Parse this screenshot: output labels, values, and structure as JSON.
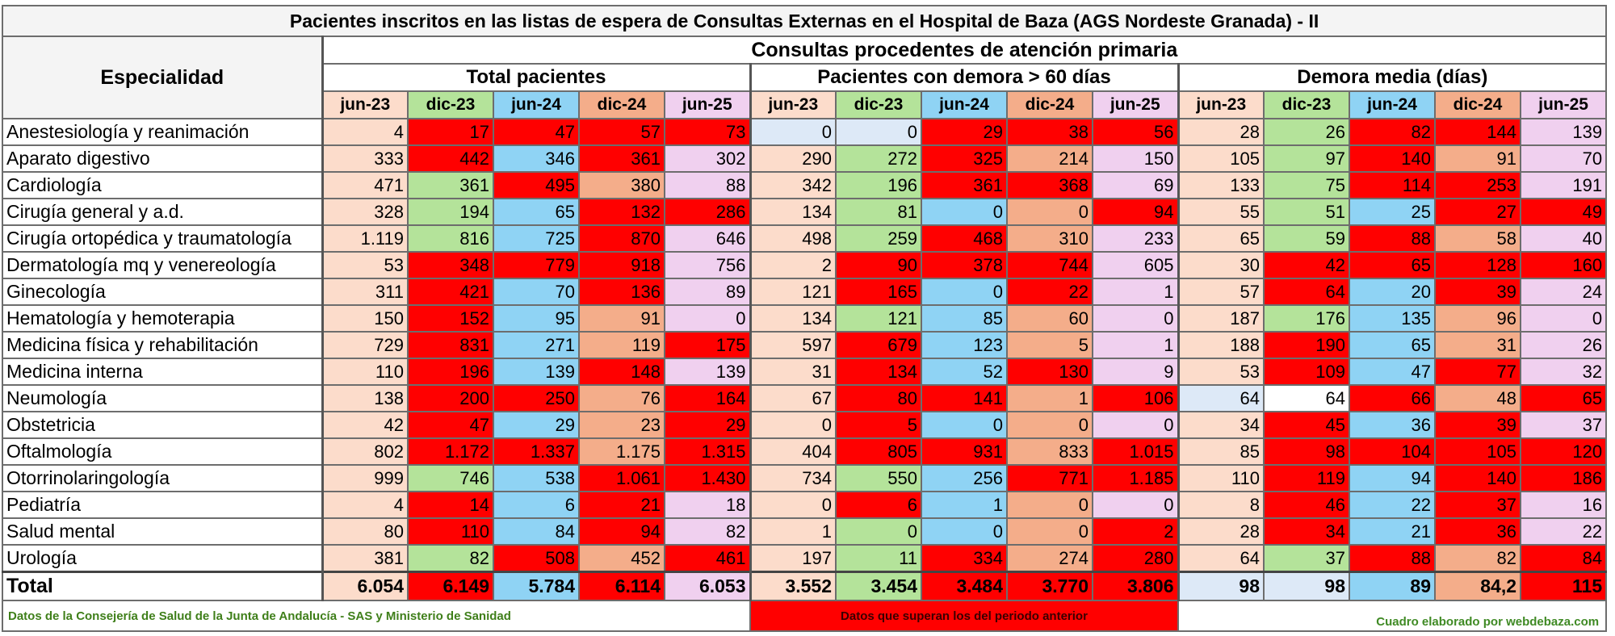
{
  "title": "Pacientes inscritos en las listas de espera de Consultas Externas en el Hospital de Baza  (AGS Nordeste Granada) - II",
  "specialty_header": "Especialidad",
  "group_header": "Consultas procedentes de atención primaria",
  "periods": [
    "jun-23",
    "dic-23",
    "jun-24",
    "dic-24",
    "jun-25"
  ],
  "period_colors": [
    "#fcdccb",
    "#b4e39a",
    "#8fd3f4",
    "#f4ad8a",
    "#f0d0ef"
  ],
  "colors": {
    "red": "#ff0000",
    "peach": "#fcdccb",
    "green": "#b4e39a",
    "blue": "#8fd3f4",
    "salmon": "#f4ad8a",
    "pink": "#f0d0ef",
    "lightblue": "#dde9f7",
    "white": "#ffffff"
  },
  "chart_data": {
    "type": "table",
    "title": "Pacientes inscritos en las listas de espera de Consultas Externas en el Hospital de Baza  (AGS Nordeste Granada) - II",
    "groups": [
      {
        "name": "Total pacientes"
      },
      {
        "name": "Pacientes con demora > 60 días"
      },
      {
        "name": "Demora media (días)"
      }
    ],
    "rows": [
      {
        "specialty": "Anestesiología y reanimación",
        "values": [
          "4",
          "17",
          "47",
          "57",
          "73",
          "0",
          "0",
          "29",
          "38",
          "56",
          "28",
          "26",
          "82",
          "144",
          "139"
        ],
        "colors": [
          "P",
          "R",
          "R",
          "R",
          "R",
          "LB",
          "LB",
          "R",
          "R",
          "R",
          "P",
          "G",
          "R",
          "R",
          "K"
        ]
      },
      {
        "specialty": "Aparato digestivo",
        "values": [
          "333",
          "442",
          "346",
          "361",
          "302",
          "290",
          "272",
          "325",
          "214",
          "150",
          "105",
          "97",
          "140",
          "91",
          "70"
        ],
        "colors": [
          "P",
          "R",
          "B",
          "R",
          "K",
          "P",
          "G",
          "R",
          "S",
          "K",
          "P",
          "G",
          "R",
          "S",
          "K"
        ]
      },
      {
        "specialty": "Cardiología",
        "values": [
          "471",
          "361",
          "495",
          "380",
          "88",
          "342",
          "196",
          "361",
          "368",
          "69",
          "133",
          "75",
          "114",
          "253",
          "191"
        ],
        "colors": [
          "P",
          "G",
          "R",
          "S",
          "K",
          "P",
          "G",
          "R",
          "R",
          "K",
          "P",
          "G",
          "R",
          "R",
          "K"
        ]
      },
      {
        "specialty": "Cirugía general y a.d.",
        "values": [
          "328",
          "194",
          "65",
          "132",
          "286",
          "134",
          "81",
          "0",
          "0",
          "94",
          "55",
          "51",
          "25",
          "27",
          "49"
        ],
        "colors": [
          "P",
          "G",
          "B",
          "R",
          "R",
          "P",
          "G",
          "B",
          "S",
          "R",
          "P",
          "G",
          "B",
          "R",
          "R"
        ]
      },
      {
        "specialty": "Cirugía ortopédica y traumatología",
        "values": [
          "1.119",
          "816",
          "725",
          "870",
          "646",
          "498",
          "259",
          "468",
          "310",
          "233",
          "65",
          "59",
          "88",
          "58",
          "40"
        ],
        "colors": [
          "P",
          "G",
          "B",
          "R",
          "K",
          "P",
          "G",
          "R",
          "S",
          "K",
          "P",
          "G",
          "R",
          "S",
          "K"
        ]
      },
      {
        "specialty": "Dermatología mq y venereología",
        "values": [
          "53",
          "348",
          "779",
          "918",
          "756",
          "2",
          "90",
          "378",
          "744",
          "605",
          "30",
          "42",
          "65",
          "128",
          "160"
        ],
        "colors": [
          "P",
          "R",
          "R",
          "R",
          "K",
          "P",
          "R",
          "R",
          "R",
          "K",
          "P",
          "R",
          "R",
          "R",
          "R"
        ]
      },
      {
        "specialty": "Ginecología",
        "values": [
          "311",
          "421",
          "70",
          "136",
          "89",
          "121",
          "165",
          "0",
          "22",
          "1",
          "57",
          "64",
          "20",
          "39",
          "24"
        ],
        "colors": [
          "P",
          "R",
          "B",
          "R",
          "K",
          "P",
          "R",
          "B",
          "R",
          "K",
          "P",
          "R",
          "B",
          "R",
          "K"
        ]
      },
      {
        "specialty": "Hematología y hemoterapia",
        "values": [
          "150",
          "152",
          "95",
          "91",
          "0",
          "134",
          "121",
          "85",
          "60",
          "0",
          "187",
          "176",
          "135",
          "96",
          "0"
        ],
        "colors": [
          "P",
          "R",
          "B",
          "S",
          "K",
          "P",
          "G",
          "B",
          "S",
          "K",
          "P",
          "G",
          "B",
          "S",
          "K"
        ]
      },
      {
        "specialty": "Medicina física y rehabilitación",
        "values": [
          "729",
          "831",
          "271",
          "119",
          "175",
          "597",
          "679",
          "123",
          "5",
          "1",
          "188",
          "190",
          "65",
          "31",
          "26"
        ],
        "colors": [
          "P",
          "R",
          "B",
          "S",
          "R",
          "P",
          "R",
          "B",
          "S",
          "K",
          "P",
          "R",
          "B",
          "S",
          "K"
        ]
      },
      {
        "specialty": "Medicina interna",
        "values": [
          "110",
          "196",
          "139",
          "148",
          "139",
          "31",
          "134",
          "52",
          "130",
          "9",
          "53",
          "109",
          "47",
          "77",
          "32"
        ],
        "colors": [
          "P",
          "R",
          "B",
          "R",
          "K",
          "P",
          "R",
          "B",
          "R",
          "K",
          "P",
          "R",
          "B",
          "R",
          "K"
        ]
      },
      {
        "specialty": "Neumología",
        "values": [
          "138",
          "200",
          "250",
          "76",
          "164",
          "67",
          "80",
          "141",
          "1",
          "106",
          "64",
          "64",
          "66",
          "48",
          "65"
        ],
        "colors": [
          "P",
          "R",
          "R",
          "S",
          "R",
          "P",
          "R",
          "R",
          "S",
          "R",
          "LB",
          "W",
          "R",
          "S",
          "R"
        ]
      },
      {
        "specialty": "Obstetricia",
        "values": [
          "42",
          "47",
          "29",
          "23",
          "29",
          "0",
          "5",
          "0",
          "0",
          "0",
          "34",
          "45",
          "36",
          "39",
          "37"
        ],
        "colors": [
          "P",
          "R",
          "B",
          "S",
          "R",
          "P",
          "R",
          "B",
          "S",
          "K",
          "P",
          "R",
          "B",
          "R",
          "K"
        ]
      },
      {
        "specialty": "Oftalmología",
        "values": [
          "802",
          "1.172",
          "1.337",
          "1.175",
          "1.315",
          "404",
          "805",
          "931",
          "833",
          "1.015",
          "85",
          "98",
          "104",
          "105",
          "120"
        ],
        "colors": [
          "P",
          "R",
          "R",
          "S",
          "R",
          "P",
          "R",
          "R",
          "S",
          "R",
          "P",
          "R",
          "R",
          "R",
          "R"
        ]
      },
      {
        "specialty": "Otorrinolaringología",
        "values": [
          "999",
          "746",
          "538",
          "1.061",
          "1.430",
          "734",
          "550",
          "256",
          "771",
          "1.185",
          "110",
          "119",
          "94",
          "140",
          "186"
        ],
        "colors": [
          "P",
          "G",
          "B",
          "R",
          "R",
          "P",
          "G",
          "B",
          "R",
          "R",
          "P",
          "R",
          "B",
          "R",
          "R"
        ]
      },
      {
        "specialty": "Pediatría",
        "values": [
          "4",
          "14",
          "6",
          "21",
          "18",
          "0",
          "6",
          "1",
          "0",
          "0",
          "8",
          "46",
          "22",
          "37",
          "16"
        ],
        "colors": [
          "P",
          "R",
          "B",
          "R",
          "K",
          "P",
          "R",
          "B",
          "S",
          "K",
          "P",
          "R",
          "B",
          "R",
          "K"
        ]
      },
      {
        "specialty": "Salud mental",
        "values": [
          "80",
          "110",
          "84",
          "94",
          "82",
          "1",
          "0",
          "0",
          "0",
          "2",
          "28",
          "34",
          "21",
          "36",
          "22"
        ],
        "colors": [
          "P",
          "R",
          "B",
          "R",
          "K",
          "P",
          "G",
          "B",
          "S",
          "R",
          "P",
          "R",
          "B",
          "R",
          "K"
        ]
      },
      {
        "specialty": "Urología",
        "values": [
          "381",
          "82",
          "508",
          "452",
          "461",
          "197",
          "11",
          "334",
          "274",
          "280",
          "64",
          "37",
          "88",
          "82",
          "84"
        ],
        "colors": [
          "P",
          "G",
          "R",
          "S",
          "R",
          "P",
          "G",
          "R",
          "S",
          "R",
          "P",
          "G",
          "R",
          "S",
          "R"
        ]
      }
    ],
    "total": {
      "label": "Total",
      "values": [
        "6.054",
        "6.149",
        "5.784",
        "6.114",
        "6.053",
        "3.552",
        "3.454",
        "3.484",
        "3.770",
        "3.806",
        "98",
        "98",
        "89",
        "84,2",
        "115"
      ],
      "colors": [
        "P",
        "R",
        "B",
        "R",
        "K",
        "P",
        "G",
        "R",
        "R",
        "R",
        "LB",
        "LB",
        "B",
        "S",
        "R"
      ]
    }
  },
  "footer": {
    "source": "Datos de la Consejería de Salud de  la Junta de Andalucía - SAS  y Ministerio de Sanidad",
    "legend": "Datos que superan los del periodo anterior",
    "credit": "Cuadro elaborado por webdebaza.com"
  }
}
